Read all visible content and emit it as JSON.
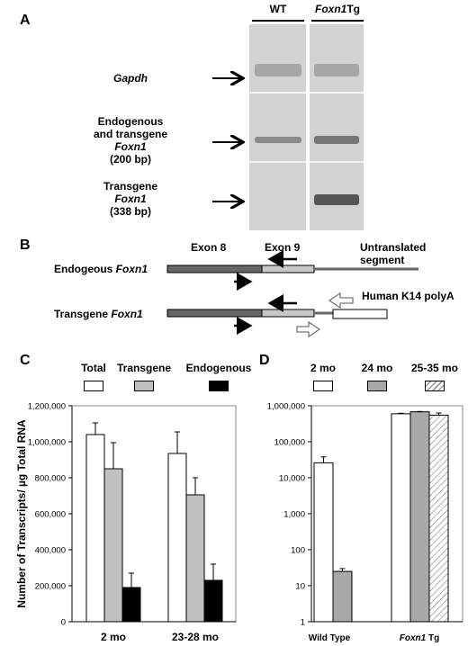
{
  "panel_a": {
    "letter": "A",
    "groups": [
      "WT",
      "Foxn1Tg"
    ],
    "group_tg_italic": "Foxn1",
    "group_tg_plain": "Tg",
    "rows": [
      {
        "label_lines": [
          "Gapdh"
        ],
        "italic": true
      },
      {
        "label_lines": [
          "Endogenous",
          "and transgene",
          "Foxn1",
          "(200 bp)"
        ]
      },
      {
        "label_lines": [
          "Transgene",
          "Foxn1",
          "(338 bp)"
        ]
      }
    ]
  },
  "panel_b": {
    "letter": "B",
    "exon8": "Exon 8",
    "exon9": "Exon 9",
    "untranslated_1": "Untranslated",
    "untranslated_2": "segment",
    "endogenous_prefix": "Endogeous ",
    "endogenous_gene": "Foxn1",
    "transgene_prefix": "Transgene ",
    "transgene_gene": "Foxn1",
    "polya": "Human K14 polyA"
  },
  "panel_c": {
    "letter": "C",
    "legend": [
      "Total",
      "Transgene",
      "Endogenous"
    ],
    "colors": {
      "total": "#ffffff",
      "transgene": "#c0c0c0",
      "endogenous": "#000000"
    }
  },
  "panel_d": {
    "letter": "D",
    "legend": [
      "2 mo",
      "24 mo",
      "25-35 mo"
    ]
  },
  "chart_data": [
    {
      "type": "bar",
      "panel": "C",
      "categories": [
        "2 mo",
        "23-28 mo"
      ],
      "series": [
        {
          "name": "Total",
          "values": [
            1040000,
            935000
          ],
          "errors": [
            65000,
            120000
          ]
        },
        {
          "name": "Transgene",
          "values": [
            850000,
            705000
          ],
          "errors": [
            145000,
            95000
          ]
        },
        {
          "name": "Endogenous",
          "values": [
            190000,
            230000
          ],
          "errors": [
            80000,
            90000
          ]
        }
      ],
      "ylabel": "Number of Transcripts/ µg Total RNA",
      "ylim": [
        0,
        1200000
      ],
      "yticks": [
        "0",
        "200,000",
        "400,000",
        "600,000",
        "800,000",
        "1,000,000",
        "1,200,000"
      ],
      "grid": false
    },
    {
      "type": "bar",
      "panel": "D",
      "scale": "log",
      "categories": [
        "Wild Type",
        "Foxn1 Tg"
      ],
      "category_label_parts": [
        [
          "Wild Type",
          ""
        ],
        [
          "Foxn1",
          " Tg"
        ]
      ],
      "series": [
        {
          "name": "2 mo",
          "values": [
            26000,
            600000
          ],
          "errors": [
            12000,
            20000
          ]
        },
        {
          "name": "24 mo",
          "values": [
            25,
            680000
          ],
          "errors": [
            5,
            15000
          ]
        },
        {
          "name": "25-35 mo",
          "values": [
            null,
            550000
          ],
          "errors": [
            null,
            80000
          ]
        }
      ],
      "ylim": [
        1,
        1000000
      ],
      "yticks": [
        "1",
        "10",
        "100",
        "1,000",
        "10,000",
        "100,000",
        "1,000,000"
      ],
      "grid": false
    }
  ]
}
